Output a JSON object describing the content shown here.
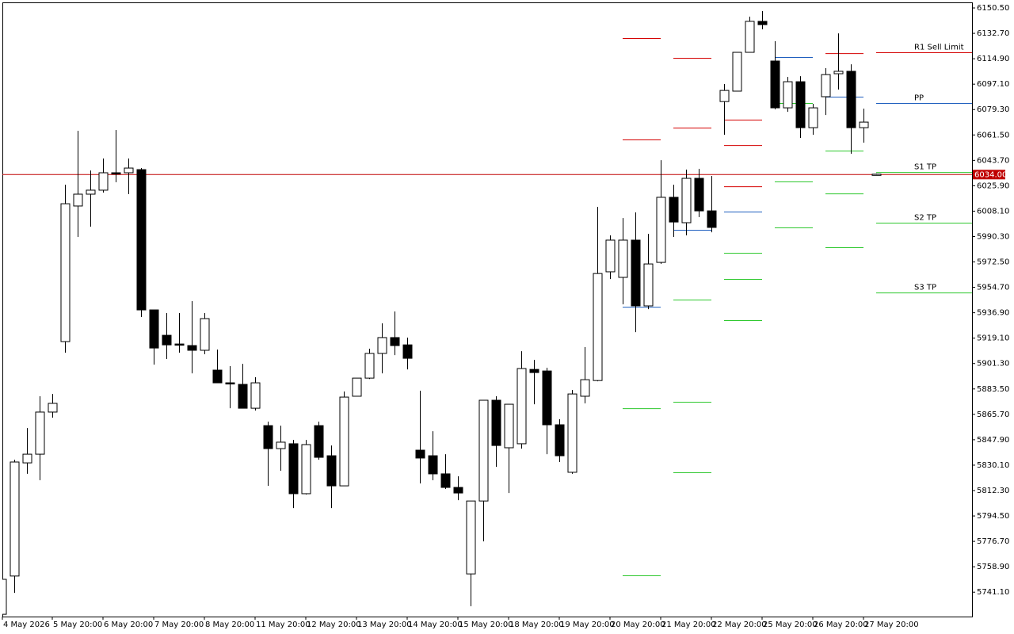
{
  "chart_data": {
    "type": "candlestick",
    "categories": [
      "4 May 2026",
      null,
      null,
      null,
      "5 May 20:00",
      null,
      null,
      null,
      "6 May 20:00",
      null,
      null,
      null,
      "7 May 20:00",
      null,
      null,
      null,
      "8 May 20:00",
      null,
      null,
      null,
      "11 May 20:00",
      null,
      null,
      null,
      "12 May 20:00",
      null,
      null,
      null,
      "13 May 20:00",
      null,
      null,
      null,
      "14 May 20:00",
      null,
      null,
      null,
      "15 May 20:00",
      null,
      null,
      null,
      "18 May 20:00",
      null,
      null,
      null,
      "19 May 20:00",
      null,
      null,
      null,
      "20 May 20:00",
      null,
      null,
      null,
      "21 May 20:00",
      null,
      null,
      null,
      "22 May 20:00",
      null,
      null,
      null,
      "25 May 20:00",
      null,
      null,
      null,
      "26 May 20:00",
      null,
      null,
      null,
      "27 May 20:00",
      null
    ],
    "open": [
      5725.6,
      5752.4,
      5831.7,
      5837.8,
      5867.3,
      5916.7,
      6011.7,
      6020.0,
      6022.8,
      6035.0,
      6035.0,
      6037.2,
      5938.9,
      5921.1,
      5915.0,
      5913.9,
      5910.6,
      5896.7,
      5887.8,
      5886.7,
      5870.0,
      5857.8,
      5841.7,
      5845.1,
      5810.1,
      5857.8,
      5836.7,
      5815.6,
      5878.4,
      5891.1,
      5908.4,
      5919.5,
      5914.4,
      5840.6,
      5836.7,
      5824.0,
      5814.5,
      5753.9,
      5805.0,
      5875.6,
      5842.3,
      5845.1,
      5897.2,
      5896.1,
      5858.4,
      5825.1,
      5878.4,
      5889.4,
      5965.6,
      5961.7,
      5987.8,
      5941.7,
      5972.2,
      6017.8,
      6000.0,
      6031.1,
      6008.3,
      6084.9,
      6092.2,
      6119.4,
      6141.1,
      6113.3,
      6080.5,
      6098.8,
      6066.6,
      6088.3,
      6104.4,
      6106.1,
      6066.6,
      6033.5
    ],
    "high": [
      5750.1,
      5833.9,
      5856.1,
      5878.4,
      5880.0,
      6026.6,
      6064.4,
      6036.6,
      6045.0,
      6065.0,
      6045.0,
      6038.3,
      5938.9,
      5936.7,
      5936.7,
      5945.0,
      5936.7,
      5911.1,
      5899.5,
      5901.1,
      5891.7,
      5860.6,
      5857.8,
      5847.8,
      5847.8,
      5860.6,
      5843.9,
      5881.7,
      5891.1,
      5911.7,
      5929.5,
      5937.8,
      5919.5,
      5882.3,
      5853.9,
      5837.8,
      5822.3,
      5805.0,
      5875.6,
      5878.4,
      5872.8,
      5910.0,
      5903.9,
      5898.4,
      5862.3,
      5882.8,
      5912.8,
      6011.1,
      5991.1,
      6003.3,
      6007.2,
      5992.2,
      6043.8,
      6026.6,
      6037.2,
      6037.7,
      6032.8,
      6097.2,
      6119.4,
      6144.4,
      6148.3,
      6127.2,
      6102.2,
      6102.7,
      6083.3,
      6108.3,
      6132.7,
      6111.0,
      6079.9,
      6034.4
    ],
    "low": [
      5725.6,
      5740.6,
      5824.0,
      5819.5,
      5863.4,
      5908.9,
      5990.0,
      5997.2,
      6021.1,
      6028.3,
      6020.0,
      5933.9,
      5900.5,
      5904.5,
      5908.9,
      5894.4,
      5907.8,
      5887.8,
      5870.0,
      5870.0,
      5868.4,
      5815.6,
      5826.2,
      5800.0,
      5809.5,
      5833.9,
      5800.0,
      5815.6,
      5878.4,
      5890.5,
      5894.4,
      5907.2,
      5897.2,
      5817.3,
      5819.5,
      5813.4,
      5805.6,
      5731.2,
      5776.7,
      5828.9,
      5810.6,
      5841.7,
      5872.8,
      5837.8,
      5832.3,
      5824.0,
      5873.4,
      5888.9,
      5960.5,
      5942.8,
      5923.3,
      5939.4,
      5971.1,
      5990.0,
      5991.1,
      6003.9,
      5993.3,
      6061.6,
      6092.2,
      6119.4,
      6135.5,
      6079.4,
      6077.7,
      6059.4,
      6061.6,
      6075.5,
      6093.3,
      6048.3,
      6056.1,
      6033.3
    ],
    "close": [
      5750.1,
      5832.3,
      5837.8,
      5867.3,
      5873.4,
      6013.3,
      6020.0,
      6022.8,
      6035.0,
      6034.4,
      6038.3,
      5938.9,
      5912.2,
      5914.4,
      5914.4,
      5910.6,
      5932.8,
      5887.8,
      5887.2,
      5870.0,
      5887.8,
      5841.7,
      5846.2,
      5810.1,
      5844.5,
      5835.6,
      5815.6,
      5877.8,
      5891.1,
      5908.4,
      5919.5,
      5913.9,
      5905.0,
      5835.1,
      5824.0,
      5814.5,
      5810.6,
      5805.0,
      5875.6,
      5843.9,
      5872.8,
      5897.8,
      5895.0,
      5858.4,
      5836.7,
      5880.0,
      5890.0,
      5964.4,
      5987.8,
      5987.8,
      5941.7,
      5971.1,
      6017.8,
      6000.5,
      6031.1,
      6008.3,
      5996.7,
      6092.7,
      6119.4,
      6141.1,
      6138.8,
      6080.5,
      6098.8,
      6066.6,
      6080.5,
      6103.8,
      6106.1,
      6066.6,
      6070.5,
      6034.0
    ],
    "up_color": "#ffffff",
    "down_color": "#000000",
    "ylim": [
      5724.0,
      6154.4
    ],
    "yticks": [
      {
        "value": 6150.5,
        "label": "6150.50"
      },
      {
        "value": 6132.7,
        "label": "6132.70"
      },
      {
        "value": 6114.9,
        "label": "6114.90"
      },
      {
        "value": 6097.1,
        "label": "6097.10"
      },
      {
        "value": 6079.3,
        "label": "6079.30"
      },
      {
        "value": 6061.5,
        "label": "6061.50"
      },
      {
        "value": 6043.7,
        "label": "6043.70"
      },
      {
        "value": 6025.9,
        "label": "6025.90"
      },
      {
        "value": 6008.1,
        "label": "6008.10"
      },
      {
        "value": 5990.3,
        "label": "5990.30"
      },
      {
        "value": 5972.5,
        "label": "5972.50"
      },
      {
        "value": 5954.7,
        "label": "5954.70"
      },
      {
        "value": 5936.9,
        "label": "5936.90"
      },
      {
        "value": 5919.1,
        "label": "5919.10"
      },
      {
        "value": 5901.3,
        "label": "5901.30"
      },
      {
        "value": 5883.5,
        "label": "5883.50"
      },
      {
        "value": 5865.7,
        "label": "5865.70"
      },
      {
        "value": 5847.9,
        "label": "5847.90"
      },
      {
        "value": 5830.1,
        "label": "5830.10"
      },
      {
        "value": 5812.3,
        "label": "5812.30"
      },
      {
        "value": 5794.5,
        "label": "5794.50"
      },
      {
        "value": 5776.7,
        "label": "5776.70"
      },
      {
        "value": 5758.9,
        "label": "5758.90"
      },
      {
        "value": 5741.1,
        "label": "5741.10"
      }
    ],
    "level_colors": {
      "resistance": "#d40000",
      "pivot": "#1f5fbf",
      "support": "#2ec82e"
    },
    "levels": [
      {
        "start": 49,
        "end": 52,
        "resistance": [
          6129.4,
          6058.3
        ],
        "pivot": [
          5941.1
        ],
        "support": [
          5870.0,
          5752.9
        ]
      },
      {
        "start": 53,
        "end": 56,
        "resistance": [
          6115.5,
          6066.6
        ],
        "pivot": [
          5995.0
        ],
        "support": [
          5946.1,
          5874.5,
          5825.1
        ]
      },
      {
        "start": 57,
        "end": 60,
        "resistance": [
          6072.2,
          6054.4,
          6025.5
        ],
        "pivot": [
          6007.8
        ],
        "support": [
          5978.9,
          5960.6,
          5931.7
        ]
      },
      {
        "start": 61,
        "end": 64,
        "resistance": [],
        "pivot": [
          6116.1
        ],
        "support": [
          6083.9,
          6028.9,
          5996.7
        ]
      },
      {
        "start": 65,
        "end": 68,
        "resistance": [
          6118.8
        ],
        "pivot": [
          6088.3
        ],
        "support": [
          6050.5,
          6020.5,
          5982.8
        ]
      }
    ],
    "annotations": [
      {
        "label": "R1 Sell Limit",
        "value": 6119.4,
        "color": "#d40000",
        "start": 69
      },
      {
        "label": "PP",
        "value": 6083.9,
        "color": "#1f5fbf",
        "start": 69
      },
      {
        "label": "S1 TP",
        "value": 6035.5,
        "color": "#2ec82e",
        "start": 69
      },
      {
        "label": "S2 TP",
        "value": 6000.0,
        "color": "#2ec82e",
        "start": 69
      },
      {
        "label": "S3 TP",
        "value": 5951.1,
        "color": "#2ec82e",
        "start": 69
      }
    ],
    "current_price": {
      "value": 6034.0,
      "label": "6034.00",
      "color": "#c00000"
    }
  }
}
